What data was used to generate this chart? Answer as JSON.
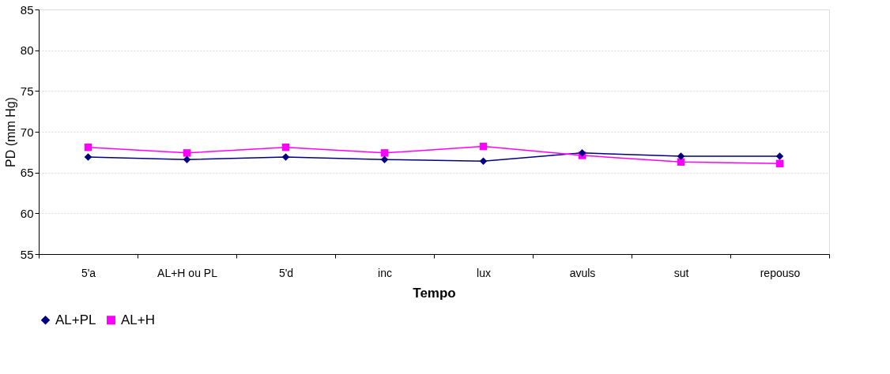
{
  "chart_data": {
    "type": "line",
    "xlabel": "Tempo",
    "ylabel": "PD (mm Hg)",
    "categories": [
      "5'a",
      "AL+H ou PL",
      "5'd",
      "inc",
      "lux",
      "avuls",
      "sut",
      "repouso"
    ],
    "series": [
      {
        "name": "AL+PL",
        "color": "#000080",
        "marker": "diamond",
        "values": [
          66.9,
          66.6,
          66.9,
          66.6,
          66.4,
          67.4,
          67.0,
          67.0
        ]
      },
      {
        "name": "AL+H",
        "color": "#ff00ff",
        "marker": "square",
        "values": [
          68.1,
          67.4,
          68.1,
          67.4,
          68.2,
          67.1,
          66.3,
          66.1
        ]
      }
    ],
    "ylim": [
      55,
      85
    ],
    "yticks": [
      55,
      60,
      65,
      70,
      75,
      80,
      85
    ],
    "grid": "y",
    "legend": "bottom",
    "line_style": "solid"
  }
}
